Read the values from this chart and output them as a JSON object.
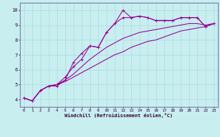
{
  "xlabel": "Windchill (Refroidissement éolien,°C)",
  "bg_color": "#c8eef0",
  "line_color": "#990099",
  "grid_color": "#b0dde0",
  "axis_color": "#7777aa",
  "x_data": [
    0,
    1,
    2,
    3,
    4,
    5,
    6,
    7,
    8,
    9,
    10,
    11,
    12,
    13,
    14,
    15,
    16,
    17,
    18,
    19,
    20,
    21,
    22,
    23
  ],
  "line1": [
    4.1,
    3.9,
    4.6,
    4.9,
    4.9,
    5.3,
    6.5,
    7.1,
    7.6,
    7.5,
    8.5,
    9.1,
    10.0,
    9.5,
    9.6,
    9.5,
    9.3,
    9.3,
    9.3,
    9.5,
    9.5,
    9.5,
    8.9,
    9.1
  ],
  "line2": [
    4.1,
    3.9,
    4.6,
    4.9,
    5.0,
    5.5,
    6.2,
    6.7,
    7.6,
    7.5,
    8.5,
    9.1,
    9.5,
    9.5,
    9.6,
    9.5,
    9.3,
    9.3,
    9.3,
    9.5,
    9.5,
    9.5,
    8.9,
    9.1
  ],
  "line3": [
    4.1,
    3.9,
    4.6,
    4.9,
    5.0,
    5.3,
    5.7,
    6.2,
    6.7,
    7.1,
    7.5,
    7.8,
    8.1,
    8.3,
    8.5,
    8.6,
    8.7,
    8.8,
    8.9,
    9.0,
    9.1,
    9.1,
    9.0,
    9.1
  ],
  "line4": [
    4.1,
    3.9,
    4.6,
    4.9,
    5.0,
    5.2,
    5.5,
    5.8,
    6.1,
    6.4,
    6.7,
    7.0,
    7.2,
    7.5,
    7.7,
    7.9,
    8.0,
    8.2,
    8.4,
    8.6,
    8.7,
    8.8,
    8.9,
    9.1
  ],
  "ylim": [
    3.5,
    10.5
  ],
  "xlim": [
    -0.5,
    23.5
  ],
  "yticks": [
    4,
    5,
    6,
    7,
    8,
    9,
    10
  ],
  "xticks": [
    0,
    1,
    2,
    3,
    4,
    5,
    6,
    7,
    8,
    9,
    10,
    11,
    12,
    13,
    14,
    15,
    16,
    17,
    18,
    19,
    20,
    21,
    22,
    23
  ]
}
